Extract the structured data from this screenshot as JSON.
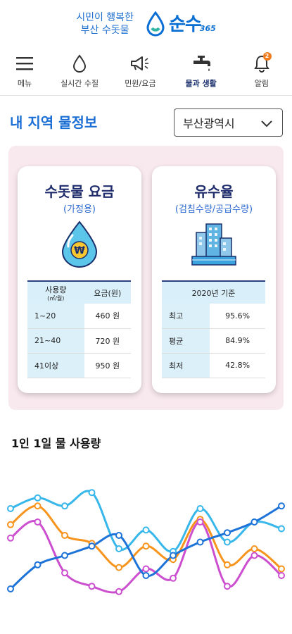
{
  "header": {
    "slogan_line1": "시민이 행복한",
    "slogan_line2": "부산 수돗물",
    "brand_name": "순수",
    "brand_suffix": "365"
  },
  "nav": {
    "items": [
      {
        "label": "메뉴",
        "icon": "menu-icon"
      },
      {
        "label": "실시간 수질",
        "icon": "water-drop-icon"
      },
      {
        "label": "민원/요금",
        "icon": "megaphone-icon"
      },
      {
        "label": "물과 생활",
        "icon": "faucet-icon",
        "active": true
      },
      {
        "label": "알림",
        "icon": "bell-icon",
        "badge": "2"
      }
    ]
  },
  "region": {
    "title": "내 지역 물정보",
    "selected": "부산광역시"
  },
  "rate_card": {
    "title": "수돗물 요금",
    "subtitle": "(가정용)",
    "col1_header": "사용량",
    "col1_unit": "(㎥/월)",
    "col2_header": "요금(원)",
    "rows": [
      {
        "range": "1~20",
        "price": "460 원"
      },
      {
        "range": "21~40",
        "price": "720 원"
      },
      {
        "range": "41이상",
        "price": "950 원"
      }
    ]
  },
  "revenue_card": {
    "title": "유수율",
    "subtitle": "(검침수량/공급수량)",
    "header": "2020년 기준",
    "rows": [
      {
        "label": "최고",
        "value": "95.6%"
      },
      {
        "label": "평균",
        "value": "84.9%"
      },
      {
        "label": "최저",
        "value": "42.8%"
      }
    ]
  },
  "usage": {
    "title": "1인 1일 물 사용량"
  },
  "colors": {
    "accent": "#1b6fd4",
    "navy": "#1f2c6b",
    "panel_bg": "#f8e9ee"
  },
  "chart_data": {
    "type": "line",
    "x": [
      0,
      1,
      2,
      3,
      4,
      5,
      6,
      7,
      8,
      9,
      10
    ],
    "series": [
      {
        "color": "#37b7ea",
        "values": [
          70,
          78,
          72,
          82,
          40,
          54,
          38,
          70,
          45,
          60,
          55
        ]
      },
      {
        "color": "#f7941d",
        "values": [
          58,
          72,
          50,
          44,
          26,
          42,
          32,
          62,
          28,
          40,
          25
        ]
      },
      {
        "color": "#cc4fd0",
        "values": [
          48,
          60,
          22,
          12,
          8,
          25,
          18,
          60,
          12,
          35,
          20
        ]
      },
      {
        "color": "#1e73d8",
        "values": [
          10,
          28,
          35,
          42,
          50,
          20,
          35,
          45,
          52,
          60,
          72
        ]
      }
    ],
    "ylim": [
      0,
      100
    ]
  }
}
